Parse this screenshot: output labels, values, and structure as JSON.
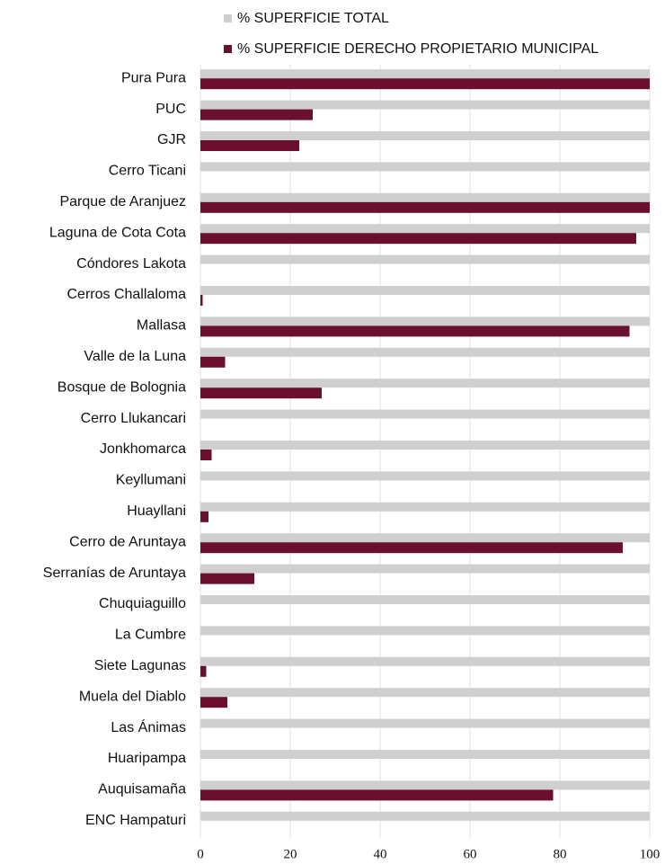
{
  "chart_data": {
    "type": "hbar",
    "categories": [
      "Pura Pura",
      "PUC",
      "GJR",
      "Cerro Ticani",
      "Parque de Aranjuez",
      "Laguna de Cota Cota",
      "Cóndores Lakota",
      "Cerros Challaloma",
      "Mallasa",
      "Valle de la Luna",
      "Bosque de Bolognia",
      "Cerro Llukancari",
      "Jonkhomarca",
      "Keyllumani",
      "Huayllani",
      "Cerro de Aruntaya",
      "Serranías de Aruntaya",
      "Chuquiaguillo",
      "La Cumbre",
      "Siete Lagunas",
      "Muela del Diablo",
      "Las Ánimas",
      "Huaripampa",
      "Auquisamaña",
      "ENC Hampaturi"
    ],
    "series": [
      {
        "name": "% SUPERFICIE TOTAL",
        "color": "#cfcfcf",
        "values": [
          100,
          100,
          100,
          100,
          100,
          100,
          100,
          100,
          100,
          100,
          100,
          100,
          100,
          100,
          100,
          100,
          100,
          100,
          100,
          100,
          100,
          100,
          100,
          100,
          100
        ]
      },
      {
        "name": "% SUPERFICIE DERECHO PROPIETARIO MUNICIPAL",
        "color": "#6b0f2e",
        "values": [
          100,
          25,
          22,
          0,
          100,
          97,
          0,
          0.5,
          95.5,
          5.5,
          27,
          0,
          2.5,
          0,
          1.8,
          94,
          12,
          0,
          0,
          1.3,
          6,
          0,
          0,
          78.5,
          0
        ]
      }
    ],
    "xlim": [
      0,
      100
    ],
    "xticks": [
      0,
      20,
      40,
      60,
      80,
      100
    ],
    "grid": true
  }
}
